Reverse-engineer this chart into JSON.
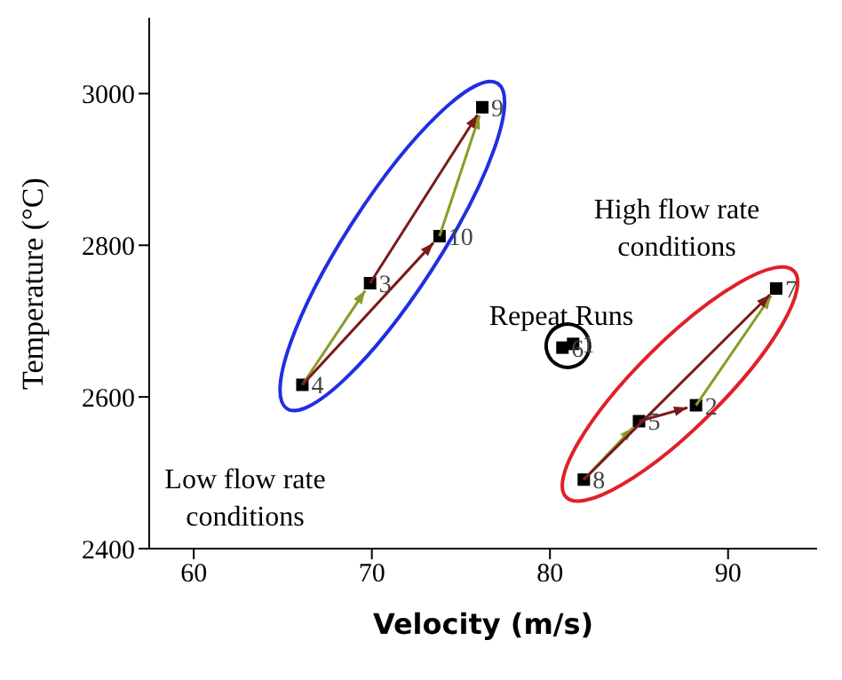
{
  "chart_data": {
    "type": "scatter",
    "xlabel": "Velocity (m/s)",
    "ylabel": "Temperature (°C)",
    "x": [
      81.3,
      88.2,
      69.9,
      66.1,
      85.0,
      80.7,
      92.7,
      81.9,
      76.2,
      73.8
    ],
    "series": [
      {
        "color": "#000000",
        "values": [
          2670,
          2589,
          2750,
          2616,
          2568,
          2665,
          2743,
          2491,
          2982,
          2812
        ]
      }
    ],
    "marker": "square",
    "grid": false,
    "legend": false,
    "xlim": [
      57.5,
      95
    ],
    "xticks": [
      60,
      70,
      80,
      90
    ],
    "ylim": [
      2400,
      3100
    ],
    "yticks": [
      2400,
      2600,
      2800,
      3000
    ],
    "annotations": [
      "High flow rate conditions",
      "Repeat Runs",
      "Low flow rate conditions",
      {
        "text": "1",
        "x": 81.3,
        "y": 2670
      },
      {
        "text": "2",
        "x": 88.2,
        "y": 2589
      },
      {
        "text": "3",
        "x": 69.9,
        "y": 2750
      },
      {
        "text": "4",
        "x": 66.1,
        "y": 2616
      },
      {
        "text": "5",
        "x": 85.0,
        "y": 2568
      },
      {
        "text": "6",
        "x": 80.7,
        "y": 2665
      },
      {
        "text": "7",
        "x": 92.7,
        "y": 2743
      },
      {
        "text": "8",
        "x": 81.9,
        "y": 2491
      },
      {
        "text": "9",
        "x": 76.2,
        "y": 2982
      },
      {
        "text": "10",
        "x": 73.8,
        "y": 2812
      }
    ]
  }
}
